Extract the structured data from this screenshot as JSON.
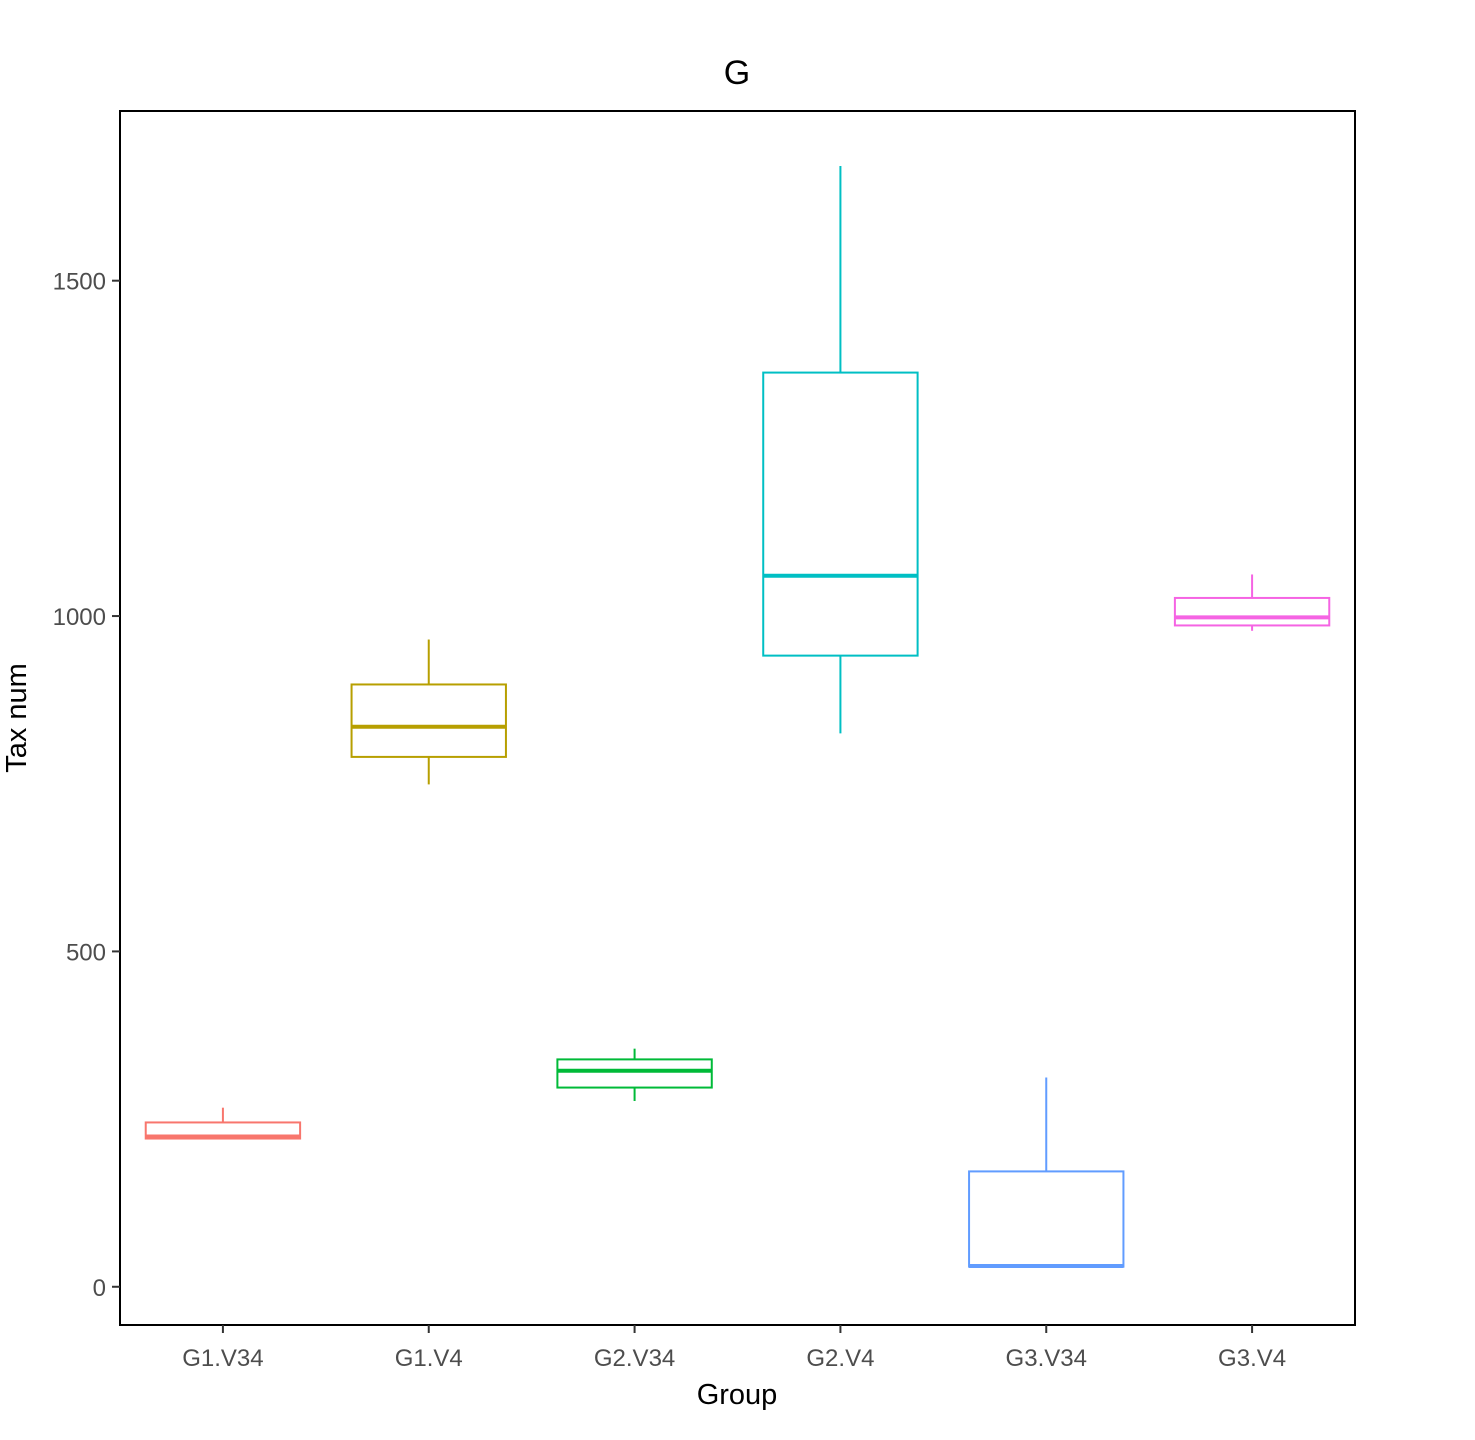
{
  "chart_data": {
    "type": "box",
    "title": "G",
    "xlabel": "Group",
    "ylabel": "Tax num",
    "ylim": [
      -57,
      1753
    ],
    "yticks": [
      0,
      500,
      1000,
      1500
    ],
    "ytick_labels": [
      "0",
      "500",
      "1000",
      "1500"
    ],
    "grid": false,
    "legend": "none",
    "categories": [
      "G1.V34",
      "G1.V4",
      "G2.V34",
      "G2.V4",
      "G3.V34",
      "G3.V4"
    ],
    "boxes": [
      {
        "min": 220,
        "q1": 221,
        "median": 224,
        "q3": 245,
        "max": 267,
        "color": "#F8766D"
      },
      {
        "min": 749,
        "q1": 790,
        "median": 835,
        "q3": 898,
        "max": 965,
        "color": "#B79F00"
      },
      {
        "min": 277,
        "q1": 297,
        "median": 322,
        "q3": 339,
        "max": 355,
        "color": "#00BA38"
      },
      {
        "min": 825,
        "q1": 941,
        "median": 1060,
        "q3": 1363,
        "max": 1671,
        "color": "#00BFC4"
      },
      {
        "min": 29,
        "q1": 30,
        "median": 31,
        "q3": 172,
        "max": 312,
        "color": "#619CFF"
      },
      {
        "min": 978,
        "q1": 986,
        "median": 998,
        "q3": 1027,
        "max": 1062,
        "color": "#F564E3"
      }
    ]
  }
}
